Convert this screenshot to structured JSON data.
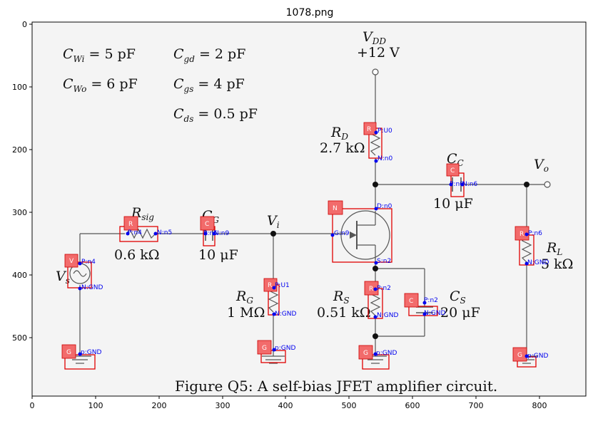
{
  "title": "1078.png",
  "axes": {
    "x_ticks": [
      "0",
      "100",
      "200",
      "300",
      "400",
      "500",
      "600",
      "700",
      "800"
    ],
    "y_ticks": [
      "0",
      "100",
      "200",
      "300",
      "400",
      "500"
    ]
  },
  "params": [
    {
      "lhs": "C",
      "sub": "Wi",
      "rhs": " = 5 pF"
    },
    {
      "lhs": "C",
      "sub": "gd",
      "rhs": " = 2 pF"
    },
    {
      "lhs": "C",
      "sub": "Wo",
      "rhs": " = 6 pF"
    },
    {
      "lhs": "C",
      "sub": "gs",
      "rhs": " = 4 pF"
    },
    {
      "lhs": "C",
      "sub": "ds",
      "rhs": " = 0.5 pF"
    }
  ],
  "circuit_labels": {
    "vdd_name": "V",
    "vdd_sub": "DD",
    "vdd_value": "+12 V",
    "rd_name": "R",
    "rd_sub": "D",
    "rd_value": "2.7 kΩ",
    "cc_name": "C",
    "cc_sub": "C",
    "cc_value": "10 μF",
    "vo_name": "V",
    "vo_sub": "o",
    "rsig_name": "R",
    "rsig_sub": "sig",
    "rsig_value": "0.6 kΩ",
    "cg_name": "C",
    "cg_sub": "G",
    "cg_value": "10 μF",
    "vi_name": "V",
    "vi_sub": "i",
    "vs_name": "V",
    "vs_sub": "s",
    "rg_name": "R",
    "rg_sub": "G",
    "rg_value": "1 MΩ",
    "rs_name": "R",
    "rs_sub": "S",
    "rs_value": "0.51 kΩ",
    "cs_name": "C",
    "cs_sub": "S",
    "cs_value": "20 μF",
    "rl_name": "R",
    "rl_sub": "L",
    "rl_value": "5 kΩ"
  },
  "caption": "Figure Q5: A self-bias JFET amplifier circuit.",
  "detections": {
    "tags": {
      "rd": "R",
      "cc": "C",
      "rsig": "R",
      "cg": "C",
      "n": "N",
      "vs": "V",
      "rg": "R",
      "rs": "R",
      "cs": "C",
      "rl": "R",
      "g1": "G",
      "g2": "G",
      "g3": "G",
      "g4": "G"
    },
    "pins": {
      "rd_p": "P:U0",
      "rd_n": "N:n0",
      "cc_p": "P:n0",
      "cc_n": "N:n6",
      "n_d": "D:n0",
      "n_g": "G:n9",
      "n_s": "S:n2",
      "rsig_p": "P:n4",
      "rsig_n": "N:n5",
      "cg_p": "P:n5",
      "cg_n": "N:n9",
      "vs_p": "P:n4",
      "vs_n": "N:GND",
      "rg_p": "P:U1",
      "rg_n": "N:GND",
      "rs_p": "P:n2",
      "rs_n": "N:GND",
      "cs_p": "P:n2",
      "cs_n": "N:GND",
      "rl_p": "P:n6",
      "rl_n": "N:GND",
      "g1": "p:GND",
      "g2": "p:GND",
      "g3": "p:GND",
      "g4": "p:GND"
    }
  }
}
